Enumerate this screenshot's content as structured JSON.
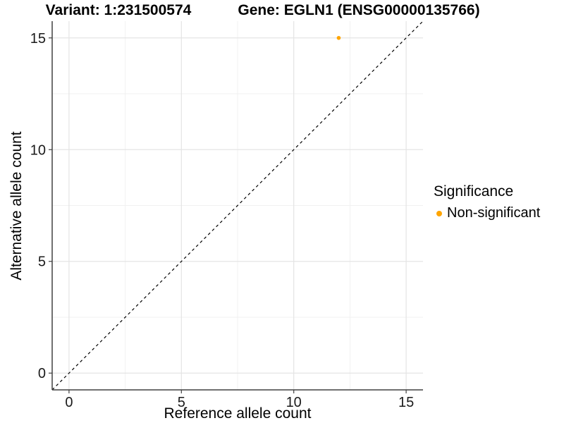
{
  "titles": {
    "variant": "Variant: 1:231500574",
    "gene": "Gene: EGLN1 (ENSG00000135766)"
  },
  "axes": {
    "x_label": "Reference allele count",
    "y_label": "Alternative allele count"
  },
  "legend": {
    "title": "Significance",
    "items": [
      {
        "label": "Non-significant",
        "color": "#FFA500"
      }
    ]
  },
  "colors": {
    "point": "#FFA500",
    "grid_major": "#E4E4E4",
    "grid_minor": "#F1F1F1",
    "axis_line": "#404040",
    "tick_text": "#1A1A1A",
    "reference_line": "#000000",
    "background": "#FFFFFF"
  },
  "chart_data": {
    "type": "scatter",
    "title": "Variant: 1:231500574   Gene: EGLN1 (ENSG00000135766)",
    "xlabel": "Reference allele count",
    "ylabel": "Alternative allele count",
    "xlim": [
      -0.75,
      15.75
    ],
    "ylim": [
      -0.75,
      15.75
    ],
    "x_ticks": [
      0,
      5,
      10,
      15
    ],
    "y_ticks": [
      0,
      5,
      10,
      15
    ],
    "x_minor_ticks": [
      2.5,
      7.5,
      12.5
    ],
    "y_minor_ticks": [
      2.5,
      7.5,
      12.5
    ],
    "grid": true,
    "legend_position": "right",
    "legend_title": "Significance",
    "series": [
      {
        "name": "Non-significant",
        "color": "#FFA500",
        "points": [
          {
            "x": 12,
            "y": 15
          }
        ]
      }
    ],
    "reference_line": {
      "kind": "identity-diagonal",
      "equation": "y = x",
      "style": "dashed",
      "color": "#000000"
    }
  }
}
